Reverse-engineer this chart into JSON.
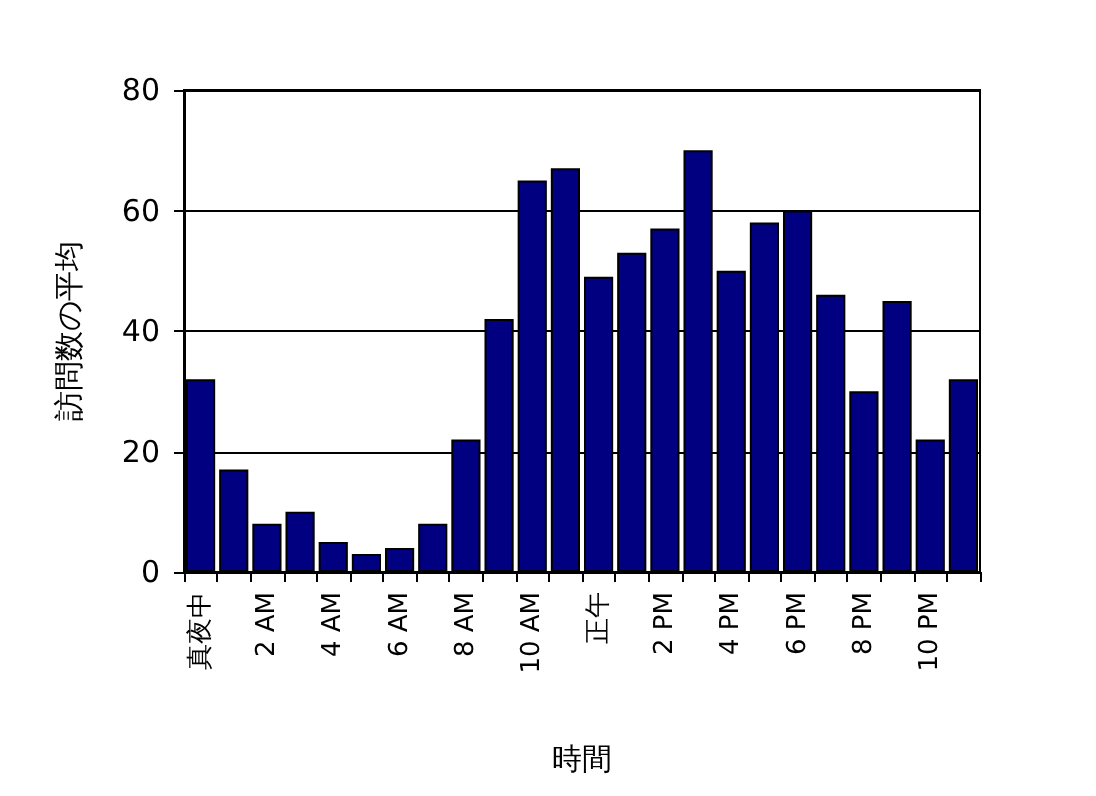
{
  "chart_data": {
    "type": "bar",
    "xlabel": "時間",
    "ylabel": "訪問数の平均",
    "categories": [
      "真夜中",
      null,
      "2 AM",
      null,
      "4 AM",
      null,
      "6 AM",
      null,
      "8 AM",
      null,
      "10 AM",
      null,
      "正午",
      null,
      "2 PM",
      null,
      "4 PM",
      null,
      "6 PM",
      null,
      "8 PM",
      null,
      "10 PM",
      null
    ],
    "values": [
      32,
      17,
      8,
      10,
      5,
      3,
      4,
      8,
      22,
      42,
      65,
      67,
      49,
      53,
      57,
      70,
      50,
      58,
      60,
      46,
      30,
      45,
      22,
      32
    ],
    "color": "#000080",
    "ylim": [
      0,
      80
    ],
    "yticks": [
      0,
      20,
      40,
      60,
      80
    ],
    "grid": "y"
  }
}
